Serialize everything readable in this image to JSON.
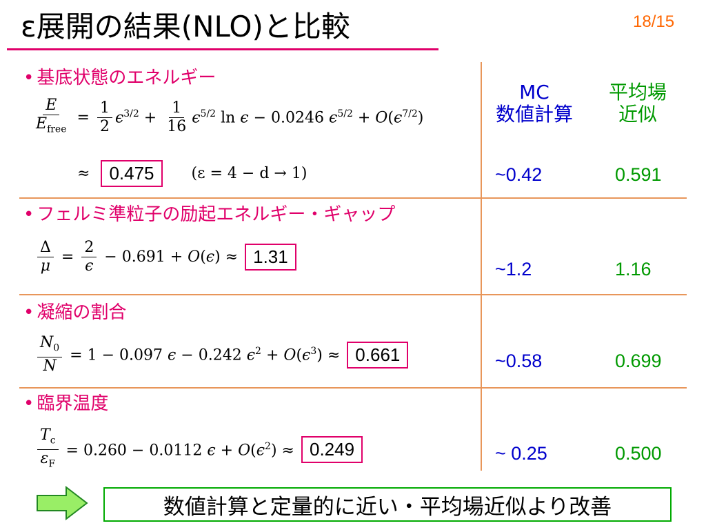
{
  "title": "ε展開の結果(NLO)と比較",
  "page_number": "18/15",
  "columns": {
    "mc_label_line1": "MC",
    "mc_label_line2": "数値計算",
    "mf_label_line1": "平均場",
    "mf_label_line2": "近似"
  },
  "rows": [
    {
      "heading": "基底状態のエネルギー",
      "formula_text": "E/E_free = 1/2 ε^{3/2} + 1/16 ε^{5/2} ln ε − 0.0246 ε^{5/2} + O(ε^{7/2})",
      "approx_prefix": "≈",
      "boxed_value": "0.475",
      "note": "(ε = 4 − d → 1)",
      "mc_value": "~0.42",
      "mf_value": "0.591"
    },
    {
      "heading": "フェルミ準粒子の励起エネルギー・ギャップ",
      "formula_text": "Δ/μ = 2/ε − 0.691 + O(ε) ≈",
      "boxed_value": "1.31",
      "mc_value": "~1.2",
      "mf_value": "1.16"
    },
    {
      "heading": "凝縮の割合",
      "formula_text": "N0/N = 1 − 0.097 ε − 0.242 ε² + O(ε³) ≈",
      "boxed_value": "0.661",
      "mc_value": "~0.58",
      "mf_value": "0.699"
    },
    {
      "heading": "臨界温度",
      "formula_text": "Tc/εF = 0.260 − 0.0112 ε + O(ε²) ≈",
      "boxed_value": "0.249",
      "mc_value": "~ 0.25",
      "mf_value": "0.500"
    }
  ],
  "conclusion": "数値計算と定量的に近い・平均場近似より改善",
  "colors": {
    "accent": "#e0006a",
    "mc": "#0000cc",
    "mf": "#009900",
    "divider": "#e8965a",
    "page_number": "#ff6600"
  },
  "icons": {
    "arrow": "right-arrow-icon"
  }
}
